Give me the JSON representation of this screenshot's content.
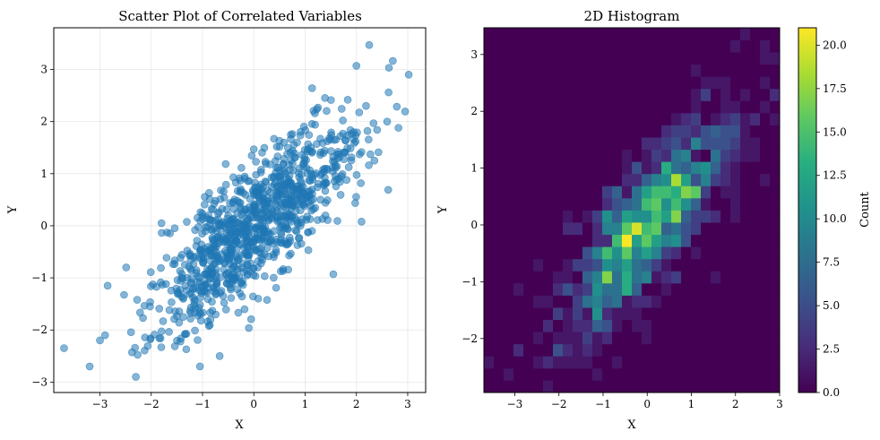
{
  "chart_data": [
    {
      "type": "scatter",
      "title": "Scatter Plot of Correlated Variables",
      "xlabel": "X",
      "ylabel": "Y",
      "xlim": [
        -3.9,
        3.35
      ],
      "ylim": [
        -3.2,
        3.8
      ],
      "xticks": [
        -3,
        -2,
        -1,
        0,
        1,
        2,
        3
      ],
      "yticks": [
        -3,
        -2,
        -1,
        0,
        1,
        2,
        3
      ],
      "xtick_labels": [
        "−3",
        "−2",
        "−1",
        "0",
        "1",
        "2",
        "3"
      ],
      "ytick_labels": [
        "−3",
        "−2",
        "−1",
        "0",
        "1",
        "2",
        "3"
      ],
      "grid": true,
      "point_color": "#1f77b4",
      "point_alpha": 0.55,
      "correlation": 0.8,
      "n_points": 1000,
      "random_seed": 42,
      "outliers": [
        {
          "x": -3.7,
          "y": -2.35
        },
        {
          "x": -3.2,
          "y": -2.7
        },
        {
          "x": -3.0,
          "y": -2.2
        },
        {
          "x": -2.9,
          "y": -2.1
        },
        {
          "x": -2.3,
          "y": -2.9
        },
        {
          "x": 2.25,
          "y": 3.47
        },
        {
          "x": 2.0,
          "y": 3.07
        },
        {
          "x": 3.02,
          "y": 2.9
        },
        {
          "x": 2.82,
          "y": 1.88
        },
        {
          "x": 2.6,
          "y": 2.0
        },
        {
          "x": 2.1,
          "y": 0.08
        },
        {
          "x": 1.55,
          "y": -0.93
        },
        {
          "x": -1.05,
          "y": -2.7
        },
        {
          "x": -2.85,
          "y": -1.15
        },
        {
          "x": -1.8,
          "y": 0.05
        }
      ]
    },
    {
      "type": "heatmap",
      "title": "2D Histogram",
      "xlabel": "X",
      "ylabel": "Y",
      "xlim": [
        -3.7,
        3.0
      ],
      "ylim": [
        -2.95,
        3.47
      ],
      "xticks": [
        -3,
        -2,
        -1,
        0,
        1,
        2,
        3
      ],
      "yticks": [
        -2,
        -1,
        0,
        1,
        2,
        3
      ],
      "xtick_labels": [
        "−3",
        "−2",
        "−1",
        "0",
        "1",
        "2",
        "3"
      ],
      "ytick_labels": [
        "−2",
        "−1",
        "0",
        "1",
        "2",
        "3"
      ],
      "bins": 30,
      "colormap": "viridis",
      "colorbar_label": "Count",
      "colorbar_range": [
        0,
        21
      ],
      "colorbar_ticks": [
        0.0,
        2.5,
        5.0,
        7.5,
        10.0,
        12.5,
        15.0,
        17.5,
        20.0
      ],
      "colorbar_tick_labels": [
        "0.0",
        "2.5",
        "5.0",
        "7.5",
        "10.0",
        "12.5",
        "15.0",
        "17.5",
        "20.0"
      ]
    }
  ]
}
